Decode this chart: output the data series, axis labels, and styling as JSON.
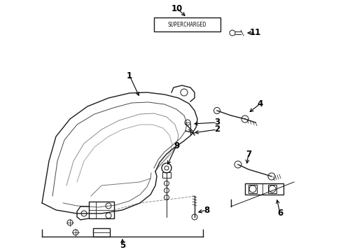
{
  "background_color": "#ffffff",
  "line_color": "#1a1a1a",
  "label_color": "#000000",
  "supercharged_text": "SUPERCHARGED",
  "figsize": [
    4.9,
    3.6
  ],
  "dpi": 100
}
